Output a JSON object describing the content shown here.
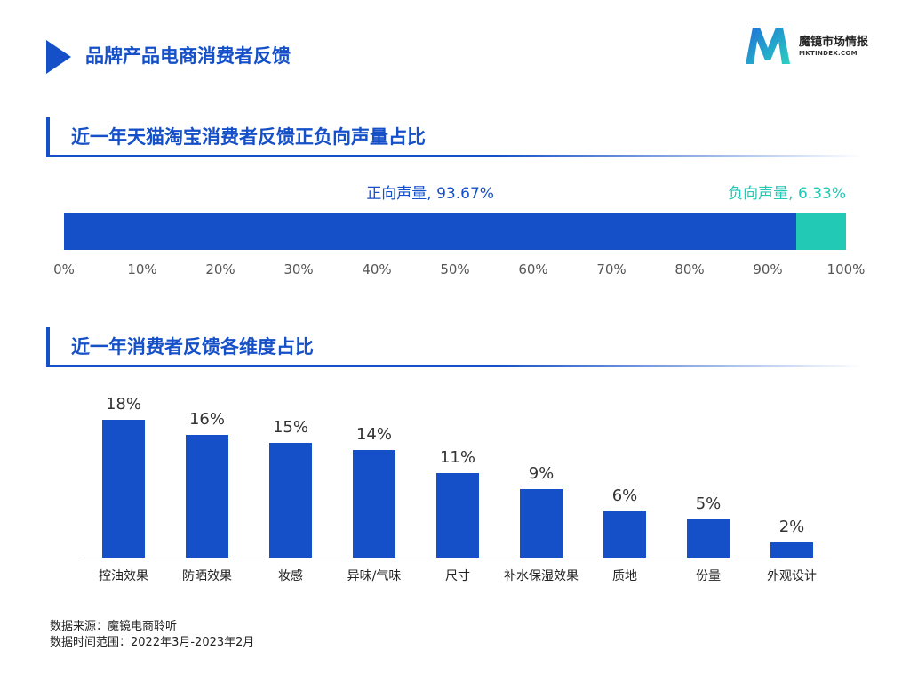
{
  "header": {
    "title": "品牌产品电商消费者反馈",
    "brand_name": "魔镜市场情报",
    "brand_url": "MKTINDEX.COM"
  },
  "colors": {
    "primary": "#1550c8",
    "positive": "#1550c8",
    "negative": "#22c9b5"
  },
  "sections": {
    "sentiment_title": "近一年天猫淘宝消费者反馈正负向声量占比",
    "dimension_title": "近一年消费者反馈各维度占比"
  },
  "chart_data": [
    {
      "type": "bar",
      "orientation": "horizontal-stacked",
      "title": "近一年天猫淘宝消费者反馈正负向声量占比",
      "series": [
        {
          "name": "正向声量",
          "value": 93.67,
          "label": "正向声量, 93.67%"
        },
        {
          "name": "负向声量",
          "value": 6.33,
          "label": "负向声量, 6.33%"
        }
      ],
      "xlim": [
        0,
        100
      ],
      "x_ticks": [
        "0%",
        "10%",
        "20%",
        "30%",
        "40%",
        "50%",
        "60%",
        "70%",
        "80%",
        "90%",
        "100%"
      ],
      "grid": false
    },
    {
      "type": "bar",
      "title": "近一年消费者反馈各维度占比",
      "categories": [
        "控油效果",
        "防晒效果",
        "妆感",
        "异味/气味",
        "尺寸",
        "补水保湿效果",
        "质地",
        "份量",
        "外观设计"
      ],
      "values": [
        18,
        16,
        15,
        14,
        11,
        9,
        6,
        5,
        2
      ],
      "value_labels": [
        "18%",
        "16%",
        "15%",
        "14%",
        "11%",
        "9%",
        "6%",
        "5%",
        "2%"
      ],
      "ylim": [
        0,
        20
      ],
      "grid": false
    }
  ],
  "footnotes": {
    "source": "数据来源：魔镜电商聆听",
    "period": "数据时间范围：2022年3月-2023年2月"
  }
}
